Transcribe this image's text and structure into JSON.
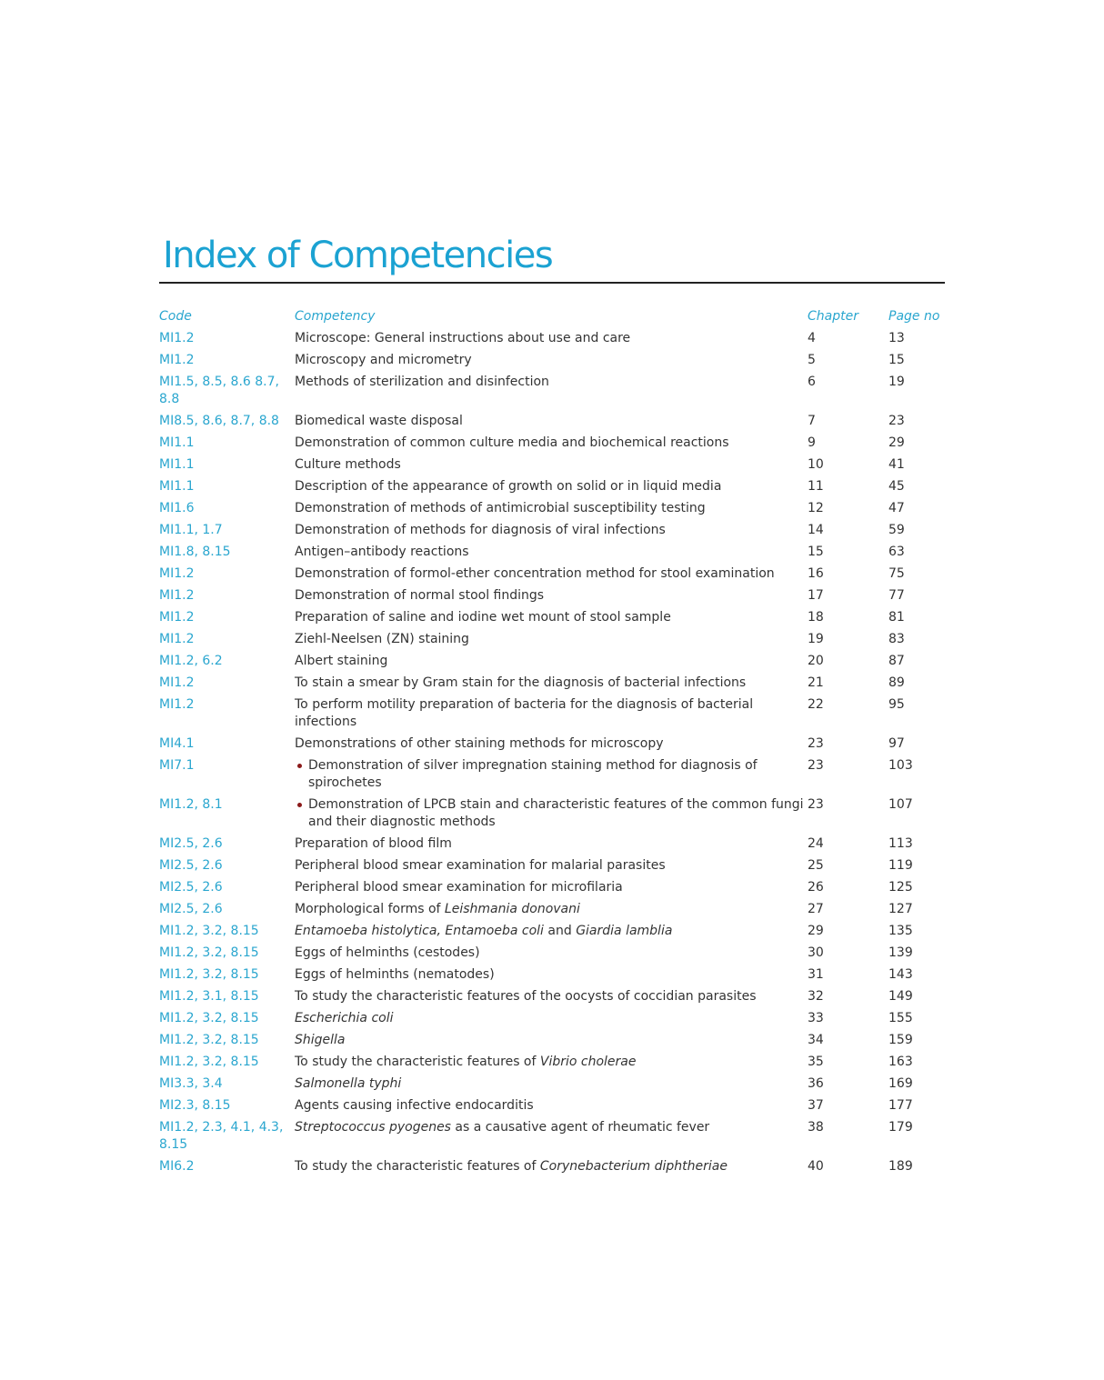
{
  "title": "Index of Competencies",
  "accent_color": "#1ba2d2",
  "headers": {
    "code": "Code",
    "competency": "Competency",
    "chapter": "Chapter",
    "page": "Page no"
  },
  "rows": [
    {
      "code": "MI1.2",
      "competency": [
        {
          "t": "Microscope: General instructions about use and care"
        }
      ],
      "chapter": "4",
      "page": "13"
    },
    {
      "code": "MI1.2",
      "competency": [
        {
          "t": "Microscopy and micrometry"
        }
      ],
      "chapter": "5",
      "page": "15"
    },
    {
      "code": "MI1.5, 8.5, 8.6 8.7, 8.8",
      "competency": [
        {
          "t": "Methods of sterilization and disinfection"
        }
      ],
      "chapter": "6",
      "page": "19"
    },
    {
      "code": "MI8.5, 8.6, 8.7, 8.8",
      "competency": [
        {
          "t": "Biomedical waste disposal"
        }
      ],
      "chapter": "7",
      "page": "23"
    },
    {
      "code": "MI1.1",
      "competency": [
        {
          "t": "Demonstration of common culture media and biochemical reactions"
        }
      ],
      "chapter": "9",
      "page": "29"
    },
    {
      "code": "MI1.1",
      "competency": [
        {
          "t": "Culture methods"
        }
      ],
      "chapter": "10",
      "page": "41"
    },
    {
      "code": "MI1.1",
      "competency": [
        {
          "t": "Description of the appearance of growth on solid or in liquid media"
        }
      ],
      "chapter": "11",
      "page": "45"
    },
    {
      "code": "MI1.6",
      "competency": [
        {
          "t": "Demonstration of methods of antimicrobial susceptibility testing"
        }
      ],
      "chapter": "12",
      "page": "47"
    },
    {
      "code": "MI1.1, 1.7",
      "competency": [
        {
          "t": "Demonstration of methods for diagnosis of viral infections"
        }
      ],
      "chapter": "14",
      "page": "59"
    },
    {
      "code": "MI1.8, 8.15",
      "competency": [
        {
          "t": "Antigen–antibody reactions"
        }
      ],
      "chapter": "15",
      "page": "63"
    },
    {
      "code": "MI1.2",
      "competency": [
        {
          "t": "Demonstration of formol-ether concentration method for stool examination"
        }
      ],
      "chapter": "16",
      "page": "75"
    },
    {
      "code": "MI1.2",
      "competency": [
        {
          "t": "Demonstration of normal stool findings"
        }
      ],
      "chapter": "17",
      "page": "77"
    },
    {
      "code": "MI1.2",
      "competency": [
        {
          "t": "Preparation of saline and iodine wet mount of stool sample"
        }
      ],
      "chapter": "18",
      "page": "81"
    },
    {
      "code": "MI1.2",
      "competency": [
        {
          "t": "Ziehl-Neelsen (ZN) staining"
        }
      ],
      "chapter": "19",
      "page": "83"
    },
    {
      "code": "MI1.2, 6.2",
      "competency": [
        {
          "t": "Albert staining"
        }
      ],
      "chapter": "20",
      "page": "87"
    },
    {
      "code": "MI1.2",
      "competency": [
        {
          "t": "To stain a smear by Gram stain for the diagnosis of bacterial infections"
        }
      ],
      "chapter": "21",
      "page": "89"
    },
    {
      "code": "MI1.2",
      "competency": [
        {
          "t": "To perform motility preparation of bacteria for the diagnosis of bacterial infections"
        }
      ],
      "chapter": "22",
      "page": "95"
    },
    {
      "code": "MI4.1",
      "competency": [
        {
          "t": "Demonstrations of other staining methods for microscopy"
        }
      ],
      "chapter": "23",
      "page": "97"
    },
    {
      "code": "MI7.1",
      "bullet": true,
      "competency": [
        {
          "t": "Demonstration of silver impregnation staining method for diagnosis of spirochetes"
        }
      ],
      "chapter": "23",
      "page": "103"
    },
    {
      "code": "MI1.2, 8.1",
      "bullet": true,
      "competency": [
        {
          "t": "Demonstration of LPCB stain and characteristic features of the common fungi and their diagnostic methods"
        }
      ],
      "chapter": "23",
      "page": "107"
    },
    {
      "code": "MI2.5, 2.6",
      "competency": [
        {
          "t": "Preparation of blood film"
        }
      ],
      "chapter": "24",
      "page": "113"
    },
    {
      "code": "MI2.5, 2.6",
      "competency": [
        {
          "t": "Peripheral blood smear examination for malarial parasites"
        }
      ],
      "chapter": "25",
      "page": "119"
    },
    {
      "code": "MI2.5, 2.6",
      "competency": [
        {
          "t": "Peripheral blood smear examination for microfilaria"
        }
      ],
      "chapter": "26",
      "page": "125"
    },
    {
      "code": "MI2.5, 2.6",
      "competency": [
        {
          "t": "Morphological forms of "
        },
        {
          "t": "Leishmania donovani",
          "i": true
        }
      ],
      "chapter": "27",
      "page": "127"
    },
    {
      "code": "MI1.2, 3.2, 8.15",
      "competency": [
        {
          "t": "Entamoeba histolytica, Entamoeba coli",
          "i": true
        },
        {
          "t": " and "
        },
        {
          "t": "Giardia lamblia",
          "i": true
        }
      ],
      "chapter": "29",
      "page": "135"
    },
    {
      "code": "MI1.2, 3.2, 8.15",
      "competency": [
        {
          "t": "Eggs of helminths (cestodes)"
        }
      ],
      "chapter": "30",
      "page": "139"
    },
    {
      "code": "MI1.2, 3.2, 8.15",
      "competency": [
        {
          "t": "Eggs of helminths (nematodes)"
        }
      ],
      "chapter": "31",
      "page": "143"
    },
    {
      "code": "MI1.2, 3.1, 8.15",
      "competency": [
        {
          "t": "To study the characteristic features of the oocysts of coccidian parasites"
        }
      ],
      "chapter": "32",
      "page": "149"
    },
    {
      "code": "MI1.2, 3.2, 8.15",
      "competency": [
        {
          "t": "Escherichia coli",
          "i": true
        }
      ],
      "chapter": "33",
      "page": "155"
    },
    {
      "code": "MI1.2, 3.2, 8.15",
      "competency": [
        {
          "t": "Shigella",
          "i": true
        }
      ],
      "chapter": "34",
      "page": "159"
    },
    {
      "code": "MI1.2, 3.2, 8.15",
      "competency": [
        {
          "t": "To study the characteristic features of "
        },
        {
          "t": "Vibrio cholerae",
          "i": true
        }
      ],
      "chapter": "35",
      "page": "163"
    },
    {
      "code": "MI3.3, 3.4",
      "competency": [
        {
          "t": "Salmonella typhi",
          "i": true
        }
      ],
      "chapter": "36",
      "page": "169"
    },
    {
      "code": "MI2.3, 8.15",
      "competency": [
        {
          "t": "Agents causing infective endocarditis"
        }
      ],
      "chapter": "37",
      "page": "177"
    },
    {
      "code": "MI1.2, 2.3, 4.1, 4.3, 8.15",
      "competency": [
        {
          "t": "Streptococcus pyogenes",
          "i": true
        },
        {
          "t": " as a causative agent of rheumatic fever"
        }
      ],
      "chapter": "38",
      "page": "179"
    },
    {
      "code": "MI6.2",
      "competency": [
        {
          "t": "To study the characteristic features of "
        },
        {
          "t": "Corynebacterium diphtheriae",
          "i": true
        }
      ],
      "chapter": "40",
      "page": "189"
    }
  ]
}
